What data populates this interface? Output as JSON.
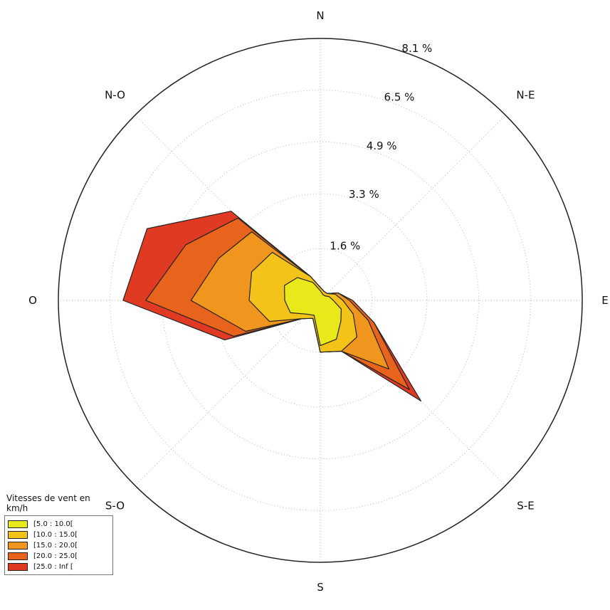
{
  "chart_data": {
    "type": "wind_rose",
    "directions": [
      "N",
      "N-E",
      "E",
      "S-E",
      "S",
      "S-O",
      "O",
      "N-O"
    ],
    "rings_percent": [
      1.6,
      3.3,
      4.9,
      6.5,
      8.1
    ],
    "ring_labels": [
      "1.6 %",
      "3.3 %",
      "4.9 %",
      "6.5 %",
      "8.1 %"
    ],
    "radial_max_percent": 8.1,
    "sector_degrees": [
      0,
      22.5,
      45,
      67.5,
      90,
      112.5,
      135,
      157.5,
      180,
      202.5,
      225,
      247.5,
      270,
      292.5,
      315,
      337.5
    ],
    "legend_title": "Vitesses de vent en km/h",
    "series": [
      {
        "name": "[5.0 : 10.0[",
        "color": "#e8e81a",
        "cumulative_percent": [
          0.3,
          0.2,
          0.2,
          0.3,
          0.4,
          0.7,
          0.9,
          1.3,
          1.4,
          0.5,
          0.6,
          1.0,
          1.1,
          1.2,
          1.0,
          0.6
        ]
      },
      {
        "name": "[10.0 : 15.0[",
        "color": "#f4c31a",
        "cumulative_percent": [
          0.4,
          0.3,
          0.3,
          0.5,
          0.7,
          1.1,
          1.6,
          1.7,
          1.6,
          0.6,
          0.8,
          1.7,
          2.2,
          2.3,
          2.1,
          0.8
        ]
      },
      {
        "name": "[15.0 : 20.0[",
        "color": "#f0951e",
        "cumulative_percent": [
          0.4,
          0.3,
          0.3,
          0.6,
          0.9,
          1.6,
          3.0,
          1.7,
          1.6,
          0.6,
          0.8,
          2.5,
          4.0,
          3.4,
          3.0,
          0.8
        ]
      },
      {
        "name": "[20.0 : 25.0[",
        "color": "#e8641c",
        "cumulative_percent": [
          0.4,
          0.3,
          0.3,
          0.6,
          1.0,
          1.8,
          3.9,
          1.7,
          1.6,
          0.6,
          0.8,
          2.9,
          5.4,
          4.5,
          3.6,
          0.8
        ]
      },
      {
        "name": "[25.0 : Inf [",
        "color": "#e03a22",
        "cumulative_percent": [
          0.4,
          0.3,
          0.3,
          0.6,
          1.0,
          1.8,
          4.4,
          1.7,
          1.6,
          0.6,
          0.8,
          3.2,
          6.1,
          5.8,
          3.9,
          0.8
        ]
      }
    ],
    "legend_position": "bottom-left",
    "grid": true
  }
}
